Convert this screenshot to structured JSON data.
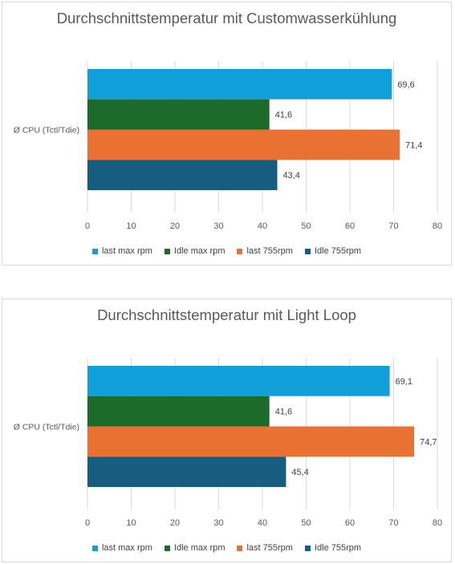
{
  "chart_data": [
    {
      "type": "bar",
      "orientation": "horizontal",
      "title": "Durchschnittstemperatur mit Customwasserkühlung",
      "categories": [
        "Ø CPU (Tctl/Tdie)"
      ],
      "series": [
        {
          "name": "last max rpm",
          "values": [
            69.6
          ],
          "label": "69,6",
          "color": "#109fd8"
        },
        {
          "name": "Idle max rpm",
          "values": [
            41.6
          ],
          "label": "41,6",
          "color": "#1d6b2a"
        },
        {
          "name": "last 755rpm",
          "values": [
            71.4
          ],
          "label": "71,4",
          "color": "#e97132"
        },
        {
          "name": "Idle 755rpm",
          "values": [
            43.4
          ],
          "label": "43,4",
          "color": "#165d80"
        }
      ],
      "xlim": [
        0,
        80
      ],
      "xticks": [
        0,
        10,
        20,
        30,
        40,
        50,
        60,
        70,
        80
      ],
      "grid": true,
      "legend_position": "bottom"
    },
    {
      "type": "bar",
      "orientation": "horizontal",
      "title": "Durchschnittstemperatur mit Light Loop",
      "categories": [
        "Ø CPU (Tctl/Tdie)"
      ],
      "series": [
        {
          "name": "last max rpm",
          "values": [
            69.1
          ],
          "label": "69,1",
          "color": "#109fd8"
        },
        {
          "name": "Idle max rpm",
          "values": [
            41.6
          ],
          "label": "41,6",
          "color": "#1d6b2a"
        },
        {
          "name": "last 755rpm",
          "values": [
            74.7
          ],
          "label": "74,7",
          "color": "#e97132"
        },
        {
          "name": "Idle 755rpm",
          "values": [
            45.4
          ],
          "label": "45,4",
          "color": "#165d80"
        }
      ],
      "xlim": [
        0,
        80
      ],
      "xticks": [
        0,
        10,
        20,
        30,
        40,
        50,
        60,
        70,
        80
      ],
      "grid": true,
      "legend_position": "bottom"
    }
  ]
}
